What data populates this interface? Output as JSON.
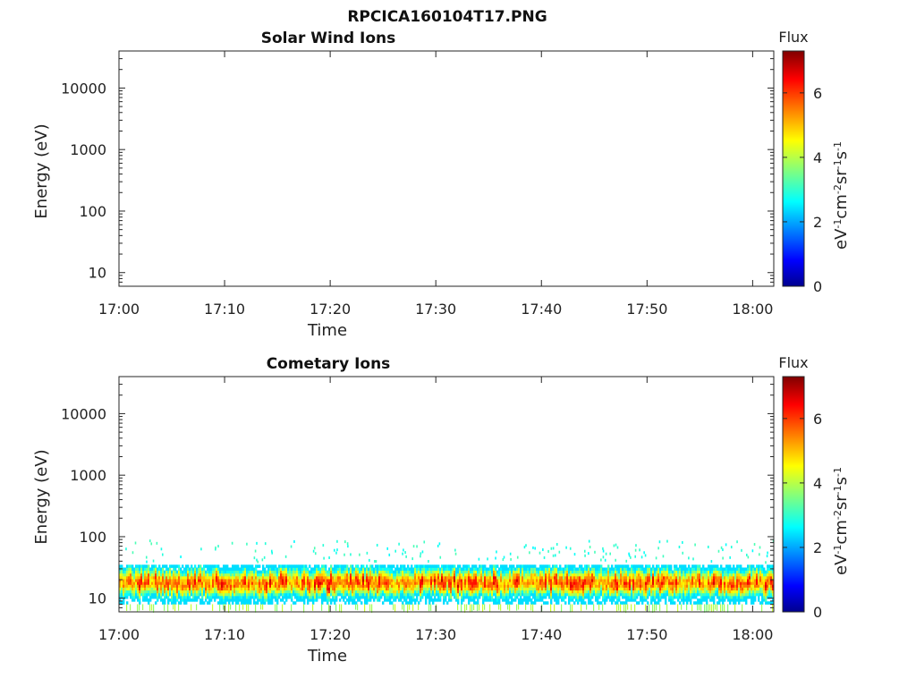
{
  "figure_title": "RPCICA160104T17.PNG",
  "chart_data": [
    {
      "type": "heatmap",
      "title": "Solar Wind Ions",
      "xlabel": "Time",
      "ylabel": "Energy (eV)",
      "y_scale": "log",
      "ylim": [
        6,
        40000
      ],
      "xlim": [
        "17:00",
        "18:02"
      ],
      "x_ticks": [
        "17:00",
        "17:10",
        "17:20",
        "17:30",
        "17:40",
        "17:50",
        "18:00"
      ],
      "y_ticks": [
        "10",
        "100",
        "1000",
        "10000"
      ],
      "colorbar": {
        "title": "Flux",
        "unit_base": "eV",
        "unit_parts": [
          "-1",
          "cm",
          "-2",
          "sr",
          "-1",
          "s",
          "-1"
        ],
        "ticks": [
          "0",
          "2",
          "4",
          "6"
        ],
        "range": [
          0,
          7.3
        ],
        "colormap": "jet"
      },
      "signal": "none"
    },
    {
      "type": "heatmap",
      "title": "Cometary Ions",
      "xlabel": "Time",
      "ylabel": "Energy (eV)",
      "y_scale": "log",
      "ylim": [
        6,
        40000
      ],
      "xlim": [
        "17:00",
        "18:02"
      ],
      "x_ticks": [
        "17:00",
        "17:10",
        "17:20",
        "17:30",
        "17:40",
        "17:50",
        "18:00"
      ],
      "y_ticks": [
        "10",
        "100",
        "1000",
        "10000"
      ],
      "colorbar": {
        "title": "Flux",
        "unit_base": "eV",
        "unit_parts": [
          "-1",
          "cm",
          "-2",
          "sr",
          "-1",
          "s",
          "-1"
        ],
        "ticks": [
          "0",
          "2",
          "4",
          "6"
        ],
        "range": [
          0,
          7.3
        ],
        "colormap": "jet"
      },
      "signal": {
        "band_energy_range_eV": [
          8,
          35
        ],
        "peak_energy_eV": 18,
        "peak_flux": 6.5,
        "scattered_energy_range_eV": [
          40,
          90
        ],
        "scattered_flux": 3
      }
    }
  ]
}
